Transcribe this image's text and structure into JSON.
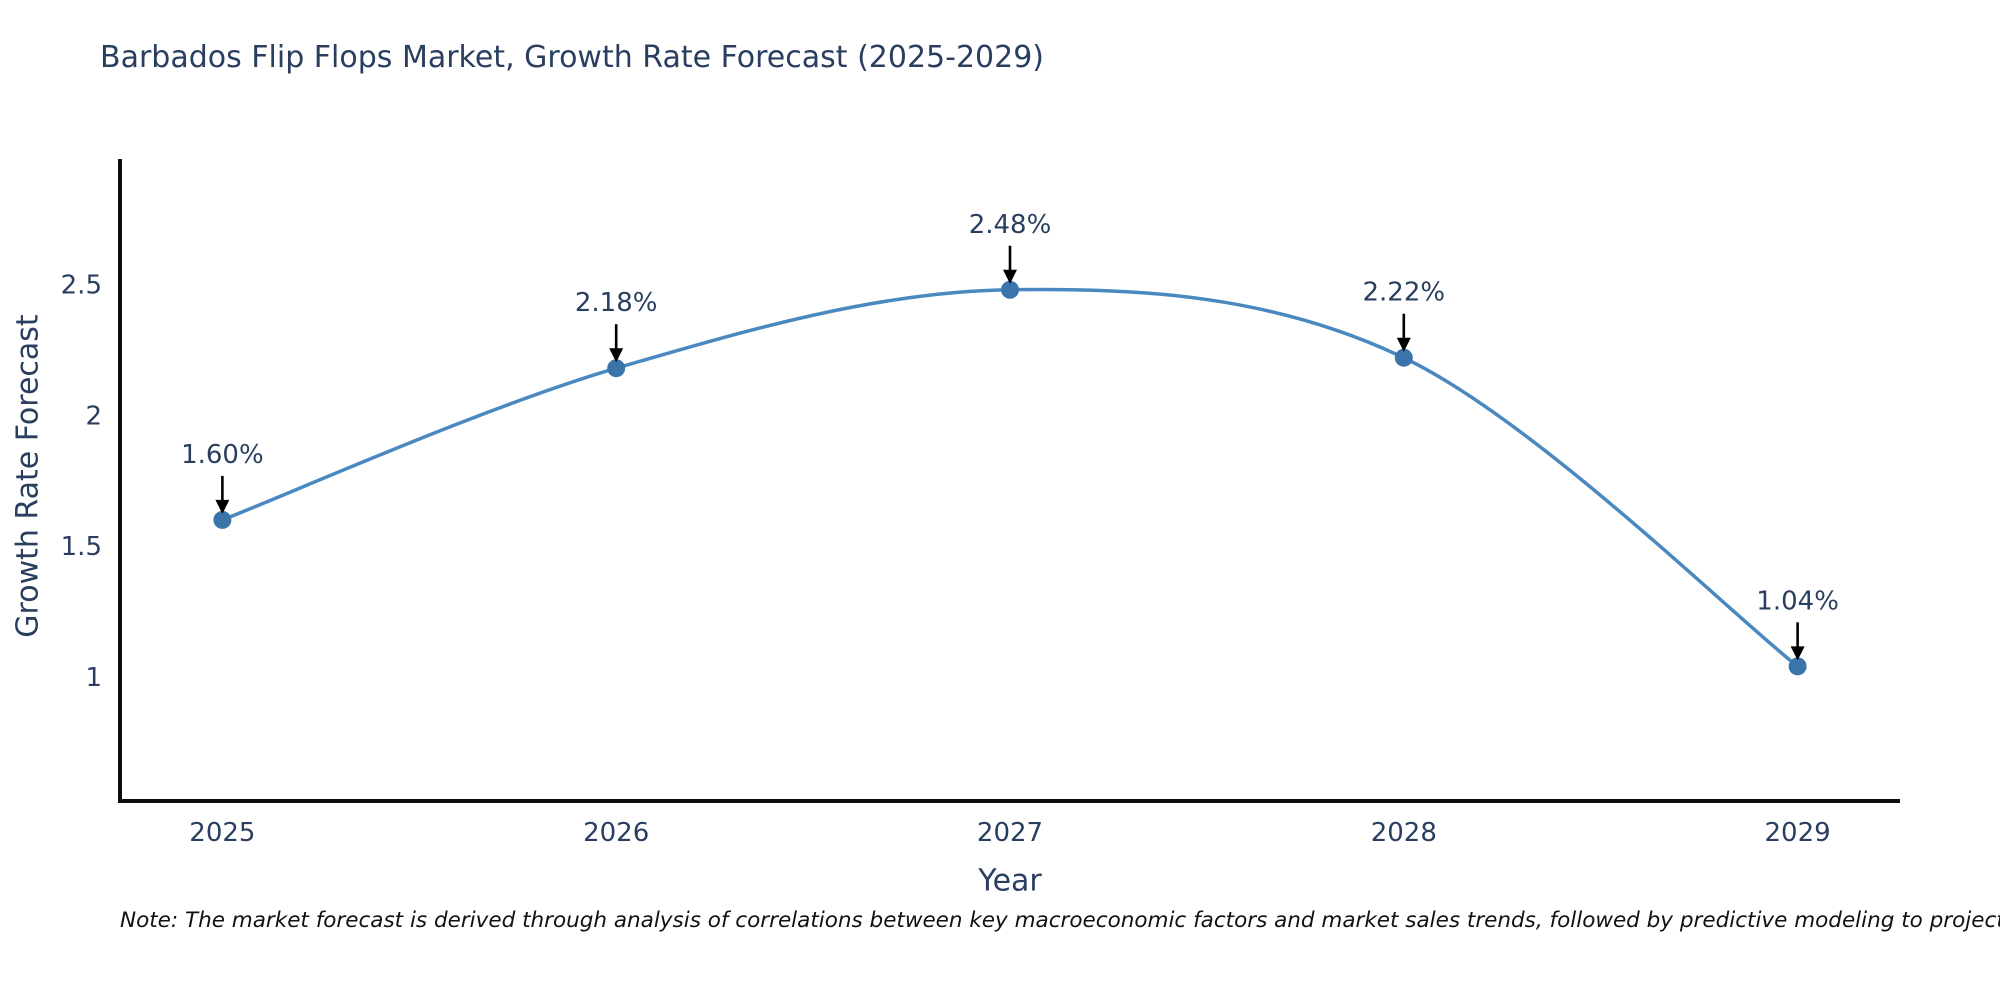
{
  "title": "Barbados Flip Flops Market, Growth Rate Forecast (2025-2029)",
  "note": "Note: The market forecast is derived through analysis of correlations between key macroeconomic factors and market sales trends, followed by predictive modeling to project future sales",
  "chart_data": {
    "type": "line",
    "title": "Barbados Flip Flops Market, Growth Rate Forecast (2025-2029)",
    "xlabel": "Year",
    "ylabel": "Growth Rate Forecast",
    "x": [
      2025,
      2026,
      2027,
      2028,
      2029
    ],
    "values": [
      1.6,
      2.18,
      2.48,
      2.22,
      1.04
    ],
    "point_labels": [
      "1.60%",
      "2.18%",
      "2.48%",
      "2.22%",
      "1.04%"
    ],
    "yticks": [
      1,
      1.5,
      2,
      2.5
    ],
    "xlim": [
      2024.74,
      2029.26
    ],
    "ylim": [
      0.525,
      2.98
    ],
    "line_shape": "spline",
    "grid": false,
    "legend": "none",
    "colors": {
      "line": "#4a89c0",
      "marker": "#3a74ab",
      "axis": "#0d0d0d",
      "text": "#2a3f5f",
      "annotation_arrow": "#000000"
    }
  }
}
